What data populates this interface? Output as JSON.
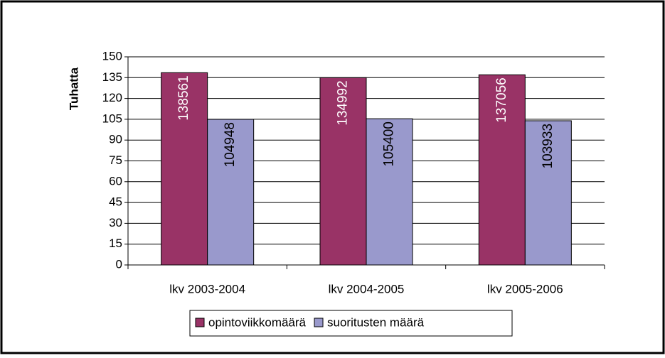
{
  "chart_data": {
    "type": "bar",
    "y_label": "Tuhatta",
    "categories": [
      "lkv 2003-2004",
      "lkv 2004-2005",
      "lkv 2005-2006"
    ],
    "series": [
      {
        "name": "opintoviikkomäärä",
        "color": "#993366",
        "values": [
          138.561,
          134.992,
          137.056
        ],
        "value_labels": [
          "138561",
          "134992",
          "137056"
        ],
        "label_color": "#ffffff"
      },
      {
        "name": "suoritusten määrä",
        "color": "#9999cc",
        "values": [
          104.948,
          105.4,
          103.933
        ],
        "value_labels": [
          "104948",
          "105400",
          "103933"
        ],
        "label_color": "#000000"
      }
    ],
    "ylim": [
      0,
      150
    ],
    "yticks": [
      0,
      15,
      30,
      45,
      60,
      75,
      90,
      105,
      120,
      135,
      150
    ],
    "grid": true
  }
}
